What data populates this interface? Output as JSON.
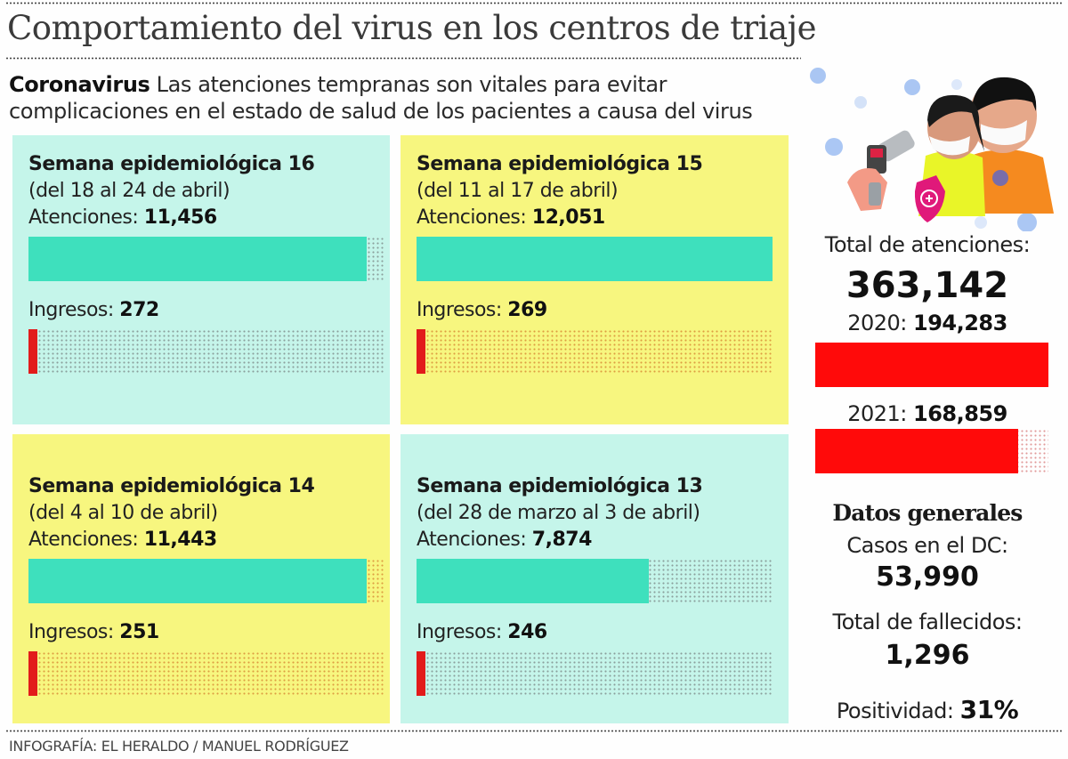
{
  "header": {
    "title": "Comportamiento del virus en los centros de triaje",
    "subtitle_kicker": "Coronavirus",
    "subtitle_text": "Las atenciones tempranas son vitales para evitar complicaciones en el estado de salud de los pacientes a causa del virus"
  },
  "colors": {
    "atenciones_bar": "#3ee0bd",
    "ingresos_bar": "#e21b1b",
    "year_bar": "#ff0a0a",
    "panel_mint": "#c5f5ea",
    "panel_yellow": "#f7f67f"
  },
  "labels": {
    "atenciones": "Atenciones:",
    "ingresos": "Ingresos:"
  },
  "panels": [
    {
      "title": "Semana epidemiológica 16",
      "range": "(del 18 al 24 de abril)",
      "atenciones": "11,456",
      "ingresos": "272",
      "theme": "mint"
    },
    {
      "title": "Semana epidemiológica 15",
      "range": "(del 11 al 17 de abril)",
      "atenciones": "12,051",
      "ingresos": "269",
      "theme": "yellow"
    },
    {
      "title": "Semana epidemiológica 14",
      "range": "(del 4 al 10 de abril)",
      "atenciones": "11,443",
      "ingresos": "251",
      "theme": "yellow"
    },
    {
      "title": "Semana epidemiológica 13",
      "range": "(del 28 de marzo al 3 de abril)",
      "atenciones": "7,874",
      "ingresos": "246",
      "theme": "mint"
    }
  ],
  "sidebar": {
    "illustration": "health-worker-temperature-check-illustration",
    "total_label": "Total de atenciones:",
    "total_value": "363,142",
    "y2020_label": "2020:",
    "y2020_value": "194,283",
    "y2021_label": "2021:",
    "y2021_value": "168,859",
    "datos_title": "Datos generales",
    "casos_label": "Casos en el DC:",
    "casos_value": "53,990",
    "fallecidos_label": "Total de fallecidos:",
    "fallecidos_value": "1,296",
    "positividad_label": "Positividad:",
    "positividad_value": "31%"
  },
  "footer": {
    "credit": "INFOGRAFÍA: EL HERALDO / MANUEL RODRÍGUEZ"
  },
  "chart_data": [
    {
      "type": "bar",
      "title": "Atenciones por semana epidemiológica",
      "categories": [
        "Semana 16",
        "Semana 15",
        "Semana 14",
        "Semana 13"
      ],
      "values": [
        11456,
        12051,
        11443,
        7874
      ],
      "xlim": [
        0,
        12051
      ],
      "orientation": "horizontal"
    },
    {
      "type": "bar",
      "title": "Ingresos por semana epidemiológica",
      "categories": [
        "Semana 16",
        "Semana 15",
        "Semana 14",
        "Semana 13"
      ],
      "values": [
        272,
        269,
        251,
        246
      ],
      "xlim": [
        0,
        12051
      ],
      "orientation": "horizontal"
    },
    {
      "type": "bar",
      "title": "Total de atenciones por año",
      "categories": [
        "2020",
        "2021"
      ],
      "values": [
        194283,
        168859
      ],
      "xlim": [
        0,
        194283
      ],
      "orientation": "horizontal"
    }
  ]
}
